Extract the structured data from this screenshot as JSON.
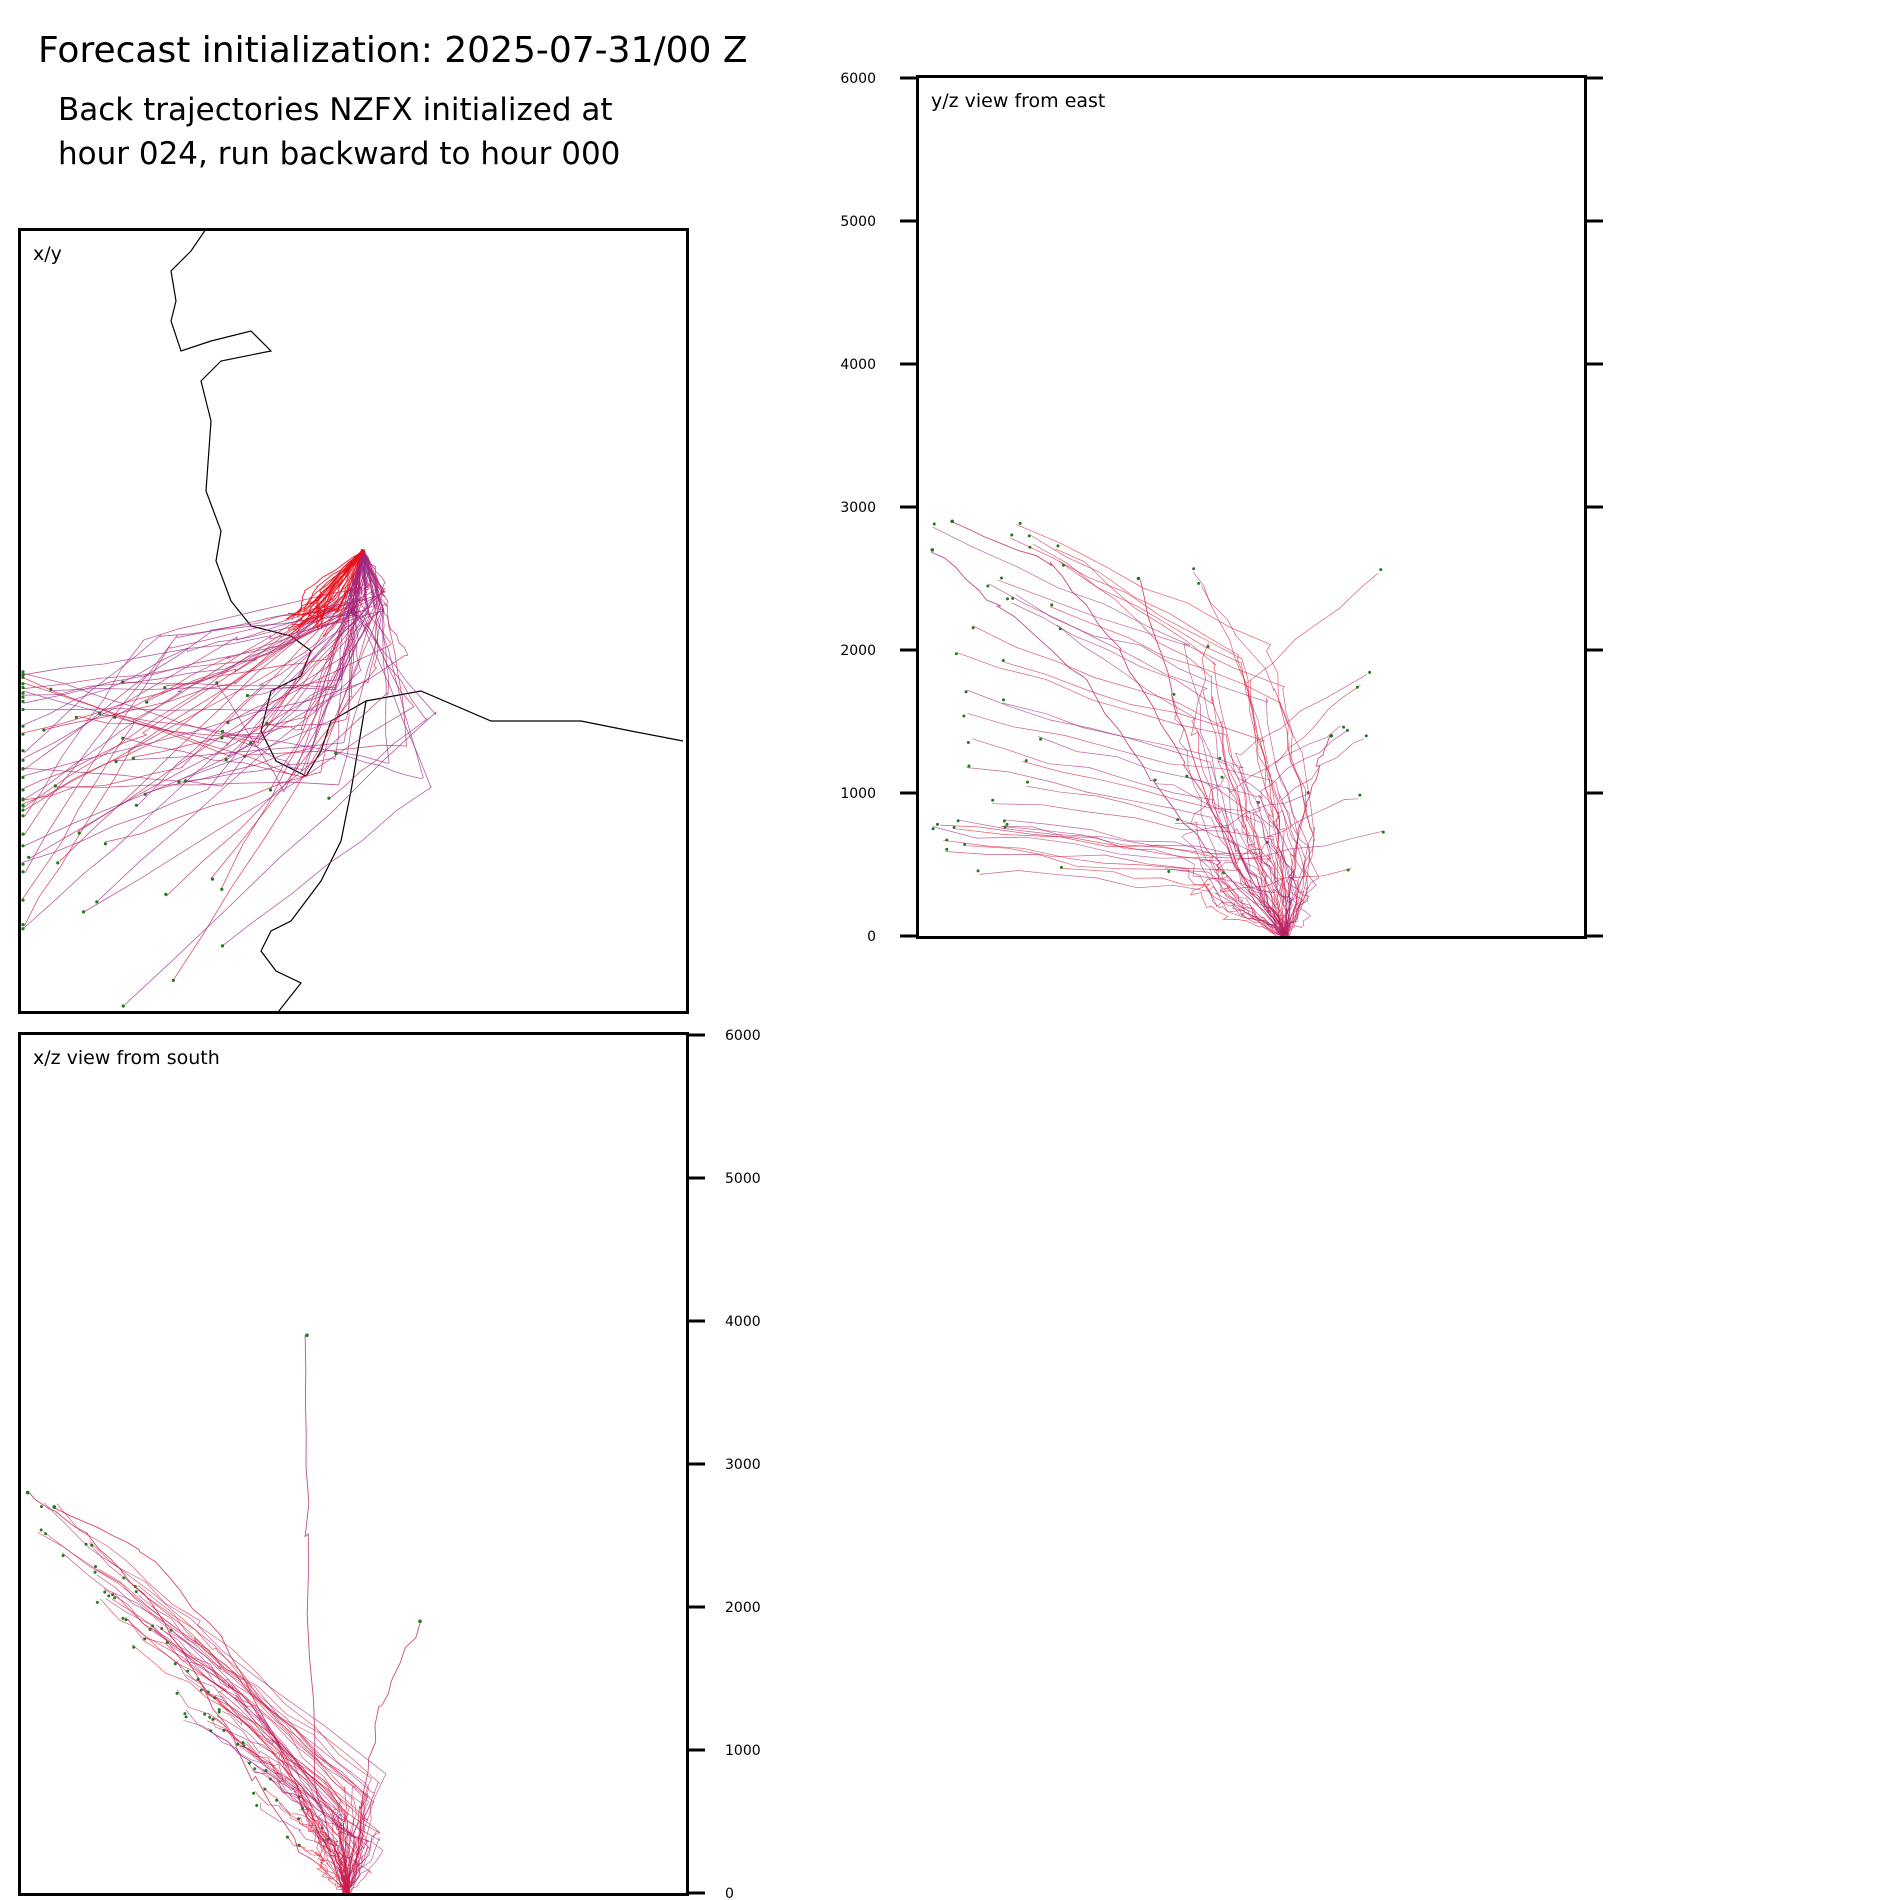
{
  "header": {
    "title": "Forecast initialization: 2025-07-31/00 Z",
    "subtitle_line1": "Back trajectories NZFX initialized at",
    "subtitle_line2": "hour 024, run backward to hour 000"
  },
  "colors": {
    "trajectory_late": "#e8101c",
    "trajectory_early": "#9a2a8c",
    "endpoint_marker": "#1f7a1f",
    "coastline": "#000000"
  },
  "chart_data": [
    {
      "type": "line",
      "panel": "x/y",
      "label": "x/y",
      "description_level": "map view with coastline",
      "axes_ticks": false
    },
    {
      "type": "line",
      "panel": "y/z view from east",
      "label": "y/z view from east",
      "yticks": [
        0,
        1000,
        2000,
        3000,
        4000,
        5000,
        6000
      ],
      "ylim": [
        0,
        6000
      ],
      "tick_side": "left",
      "sample_series": [
        {
          "y": [
            0.55,
            0.5,
            0.44,
            0.38,
            0.33
          ],
          "z": [
            0,
            300,
            900,
            1700,
            2500
          ]
        },
        {
          "y": [
            0.55,
            0.53,
            0.48,
            0.4,
            0.3,
            0.2,
            0.05
          ],
          "z": [
            0,
            200,
            600,
            1200,
            2000,
            2600,
            2900
          ]
        },
        {
          "y": [
            0.55,
            0.56,
            0.58,
            0.6,
            0.62
          ],
          "z": [
            0,
            400,
            900,
            1200,
            1400
          ]
        },
        {
          "y": [
            0.55,
            0.45,
            0.35,
            0.25,
            0.12,
            0.02
          ],
          "z": [
            0,
            500,
            1100,
            1800,
            2300,
            2700
          ]
        }
      ]
    },
    {
      "type": "line",
      "panel": "x/z view from south",
      "label": "x/z view from south",
      "yticks": [
        0,
        1000,
        2000,
        3000,
        4000,
        5000,
        6000
      ],
      "ylim": [
        0,
        6000
      ],
      "tick_side": "right",
      "sample_series": [
        {
          "x": [
            0.49,
            0.45,
            0.4,
            0.3,
            0.18,
            0.05
          ],
          "z": [
            0,
            400,
            900,
            1800,
            2400,
            2700
          ]
        },
        {
          "x": [
            0.49,
            0.42,
            0.35,
            0.28,
            0.2,
            0.1,
            0.01
          ],
          "z": [
            0,
            300,
            800,
            1400,
            2000,
            2500,
            2800
          ]
        },
        {
          "x": [
            0.49,
            0.51,
            0.54,
            0.6
          ],
          "z": [
            0,
            600,
            1300,
            1900
          ]
        },
        {
          "x": [
            0.49,
            0.44,
            0.43,
            0.43
          ],
          "z": [
            0,
            800,
            2500,
            3900
          ]
        }
      ]
    }
  ]
}
